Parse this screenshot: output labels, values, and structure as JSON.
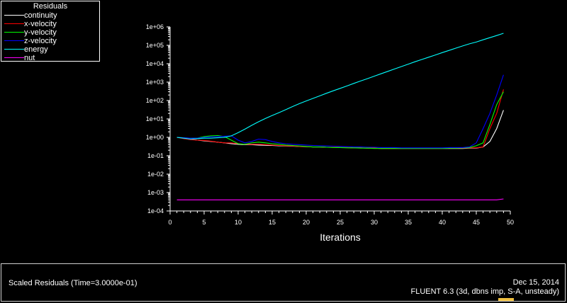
{
  "chart_data": {
    "type": "line",
    "title": "",
    "xlabel": "Iterations",
    "ylabel": "",
    "xlim": [
      0,
      50
    ],
    "ylim": [
      0.0001,
      1000000
    ],
    "yscale": "log",
    "grid": false,
    "legend": {
      "title": "Residuals",
      "placement": "top-left"
    },
    "x_ticks": [
      "0",
      "5",
      "10",
      "15",
      "20",
      "25",
      "30",
      "35",
      "40",
      "45",
      "50"
    ],
    "y_ticks": [
      "1e-04",
      "1e-03",
      "1e-02",
      "1e-01",
      "1e+00",
      "1e+01",
      "1e+02",
      "1e+03",
      "1e+04",
      "1e+05",
      "1e+06"
    ],
    "x": [
      1,
      2,
      3,
      4,
      5,
      6,
      7,
      8,
      9,
      10,
      11,
      12,
      13,
      14,
      15,
      16,
      17,
      18,
      19,
      20,
      21,
      22,
      23,
      24,
      25,
      26,
      27,
      28,
      29,
      30,
      31,
      32,
      33,
      34,
      35,
      36,
      37,
      38,
      39,
      40,
      41,
      42,
      43,
      44,
      45,
      46,
      47,
      48,
      49
    ],
    "series": [
      {
        "name": "continuity",
        "color": "#ffffff",
        "values": [
          1.0,
          0.9,
          0.8,
          0.7,
          0.65,
          0.6,
          0.55,
          0.5,
          0.45,
          0.42,
          0.4,
          0.4,
          0.38,
          0.37,
          0.36,
          0.35,
          0.34,
          0.33,
          0.32,
          0.31,
          0.3,
          0.3,
          0.29,
          0.29,
          0.28,
          0.28,
          0.27,
          0.27,
          0.26,
          0.26,
          0.25,
          0.25,
          0.25,
          0.25,
          0.25,
          0.25,
          0.25,
          0.25,
          0.25,
          0.25,
          0.25,
          0.25,
          0.25,
          0.26,
          0.26,
          0.3,
          0.6,
          3.0,
          30.0
        ]
      },
      {
        "name": "x-velocity",
        "color": "#ff0000",
        "values": [
          1.0,
          0.85,
          0.75,
          0.7,
          0.68,
          0.62,
          0.55,
          0.5,
          0.5,
          0.45,
          0.42,
          0.42,
          0.42,
          0.4,
          0.38,
          0.36,
          0.35,
          0.34,
          0.32,
          0.31,
          0.3,
          0.3,
          0.29,
          0.29,
          0.28,
          0.28,
          0.27,
          0.27,
          0.26,
          0.26,
          0.25,
          0.25,
          0.25,
          0.25,
          0.25,
          0.25,
          0.25,
          0.25,
          0.25,
          0.25,
          0.26,
          0.26,
          0.26,
          0.27,
          0.27,
          0.3,
          3.0,
          20.0,
          400.0
        ]
      },
      {
        "name": "y-velocity",
        "color": "#00ff00",
        "values": [
          1.0,
          0.95,
          0.9,
          0.9,
          1.1,
          1.2,
          1.25,
          1.1,
          0.7,
          0.45,
          0.42,
          0.5,
          0.55,
          0.5,
          0.45,
          0.42,
          0.38,
          0.36,
          0.34,
          0.32,
          0.3,
          0.3,
          0.29,
          0.28,
          0.28,
          0.27,
          0.27,
          0.26,
          0.26,
          0.25,
          0.25,
          0.25,
          0.25,
          0.25,
          0.25,
          0.25,
          0.25,
          0.25,
          0.25,
          0.25,
          0.26,
          0.26,
          0.27,
          0.28,
          0.35,
          0.5,
          5.0,
          60.0,
          300.0
        ]
      },
      {
        "name": "z-velocity",
        "color": "#0000ff",
        "values": [
          1.0,
          0.95,
          0.9,
          0.9,
          1.0,
          1.05,
          1.1,
          1.15,
          1.2,
          0.7,
          0.5,
          0.6,
          0.8,
          0.75,
          0.6,
          0.5,
          0.45,
          0.42,
          0.4,
          0.38,
          0.36,
          0.35,
          0.34,
          0.33,
          0.32,
          0.31,
          0.3,
          0.3,
          0.29,
          0.29,
          0.28,
          0.28,
          0.28,
          0.27,
          0.27,
          0.27,
          0.27,
          0.27,
          0.27,
          0.27,
          0.28,
          0.28,
          0.28,
          0.3,
          0.5,
          3.0,
          20.0,
          200.0,
          2500.0
        ]
      },
      {
        "name": "energy",
        "color": "#00ffff",
        "values": [
          1.0,
          0.9,
          0.8,
          0.85,
          0.9,
          0.9,
          0.95,
          1.0,
          1.2,
          1.8,
          2.8,
          4.5,
          7.0,
          10.5,
          15.5,
          22.0,
          32.0,
          47.0,
          68.0,
          95.0,
          130.0,
          180.0,
          250.0,
          340.0,
          460.0,
          620.0,
          850.0,
          1150.0,
          1550.0,
          2100.0,
          2850.0,
          3850.0,
          5200.0,
          7000.0,
          9500.0,
          12800.0,
          17000.0,
          22500.0,
          30000.0,
          40000.0,
          53000.0,
          70000.0,
          92000.0,
          120000.0,
          150000.0,
          200000.0,
          260000.0,
          340000.0,
          450000.0
        ]
      },
      {
        "name": "nut",
        "color": "#ff00ff",
        "values": [
          0.0004,
          0.0004,
          0.0004,
          0.0004,
          0.0004,
          0.0004,
          0.0004,
          0.0004,
          0.0004,
          0.0004,
          0.0004,
          0.0004,
          0.0004,
          0.0004,
          0.0004,
          0.0004,
          0.0004,
          0.0004,
          0.0004,
          0.0004,
          0.0004,
          0.0004,
          0.0004,
          0.0004,
          0.0004,
          0.0004,
          0.0004,
          0.0004,
          0.0004,
          0.0004,
          0.0004,
          0.0004,
          0.0004,
          0.0004,
          0.0004,
          0.0004,
          0.0004,
          0.0004,
          0.0004,
          0.0004,
          0.0004,
          0.0004,
          0.0004,
          0.0004,
          0.0004,
          0.0004,
          0.0004,
          0.0004,
          0.00045
        ]
      }
    ]
  },
  "footer": {
    "left_text": "Scaled Residuals  (Time=3.0000e-01)",
    "date": "Dec 15, 2014",
    "version": "FLUENT 6.3 (3d, dbns imp, S-A, unsteady)"
  },
  "colors": {
    "background": "#000000",
    "axis": "#ffffff",
    "text": "#ffffff"
  }
}
